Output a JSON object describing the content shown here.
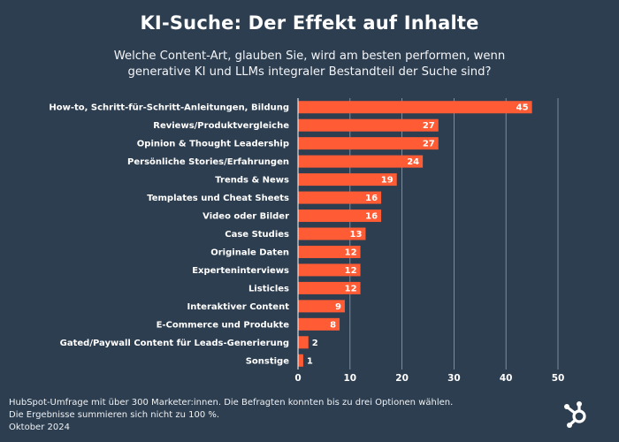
{
  "chart_data": {
    "type": "bar",
    "orientation": "horizontal",
    "title": "KI-Suche: Der Effekt auf Inhalte",
    "subtitle_lines": [
      "Welche Content-Art, glauben Sie, wird am besten performen, wenn",
      "generative KI und LLMs integraler Bestandteil der Suche sind?"
    ],
    "categories": [
      "How-to, Schritt-für-Schritt-Anleitungen, Bildung",
      "Reviews/Produktvergleiche",
      "Opinion & Thought Leadership",
      "Persönliche Stories/Erfahrungen",
      "Trends & News",
      "Templates und Cheat Sheets",
      "Video oder Bilder",
      "Case Studies",
      "Originale Daten",
      "Experteninterviews",
      "Listicles",
      "Interaktiver Content",
      "E-Commerce und Produkte",
      "Gated/Paywall Content für Leads-Generierung",
      "Sonstige"
    ],
    "values": [
      45,
      27,
      27,
      24,
      19,
      16,
      16,
      13,
      12,
      12,
      12,
      9,
      8,
      2,
      1
    ],
    "xlim": [
      0,
      50
    ],
    "xticks": [
      "0",
      "10",
      "20",
      "30",
      "40",
      "50"
    ],
    "grid": true,
    "bar_color": "#ff5c35",
    "background": "#2d3e50",
    "grid_color": "#8fa0b3"
  },
  "footnote": [
    "HubSpot-Umfrage mit über 300 Marketer:innen. Die Befragten konnten bis zu drei Optionen wählen.",
    "Die Ergebnisse summieren sich nicht zu 100 %.",
    "Oktober 2024"
  ],
  "logo": {
    "icon": "hubspot-sprocket-icon"
  }
}
